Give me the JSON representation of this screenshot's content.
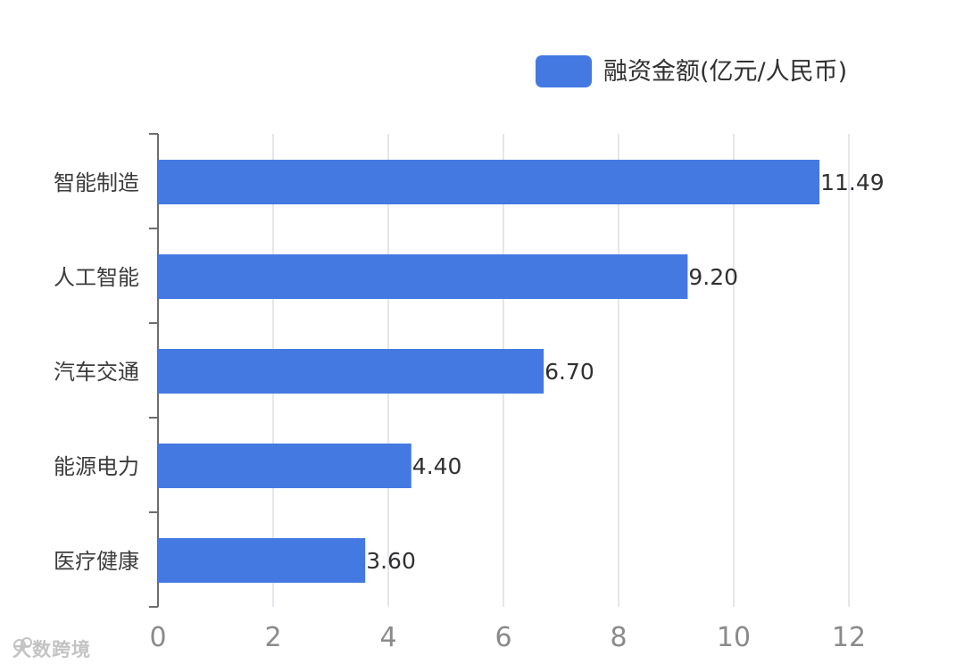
{
  "chart_data": {
    "type": "bar",
    "orientation": "horizontal",
    "categories": [
      "智能制造",
      "人工智能",
      "汽车交通",
      "能源电力",
      "医疗健康"
    ],
    "series": [
      {
        "name": "融资金额(亿元/人民币)",
        "values": [
          11.49,
          9.2,
          6.7,
          4.4,
          3.6
        ],
        "value_labels": [
          "11.49",
          "9.20",
          "6.70",
          "4.40",
          "3.60"
        ],
        "color": "#4479e2"
      }
    ],
    "x_ticks": [
      "0",
      "2",
      "4",
      "6",
      "8",
      "10",
      "12"
    ],
    "xlim": [
      0,
      12
    ],
    "grid": true,
    "legend_position": "top-right"
  },
  "watermark": {
    "text": "大数跨境",
    "icon": "cloud-logo-icon"
  }
}
